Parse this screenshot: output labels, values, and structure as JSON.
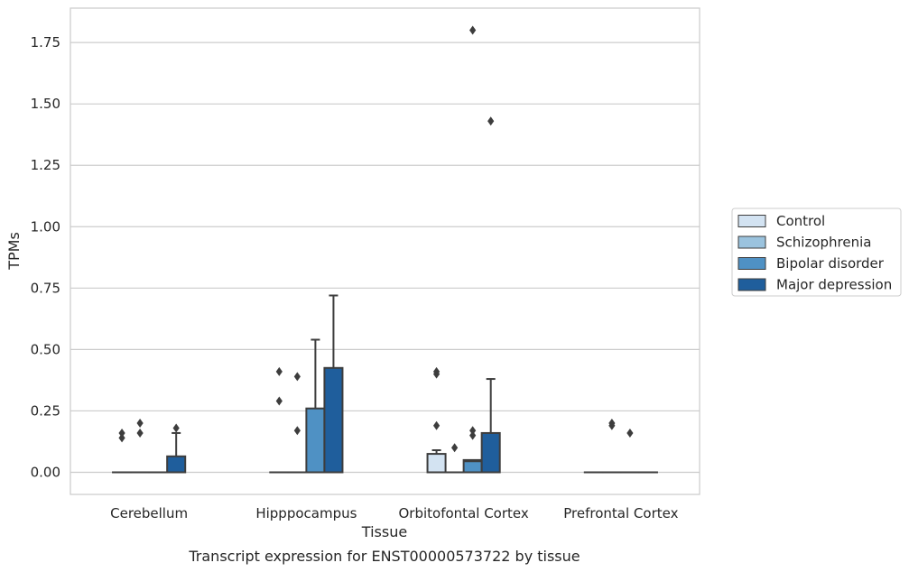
{
  "chart_data": {
    "type": "box",
    "title": "Transcript expression for ENST00000573722 by tissue",
    "xlabel": "Tissue",
    "ylabel": "TPMs",
    "ylim": [
      -0.09,
      1.89
    ],
    "yticks": [
      "0.00",
      "0.25",
      "0.50",
      "0.75",
      "1.00",
      "1.25",
      "1.50",
      "1.75"
    ],
    "ytick_values": [
      0,
      0.25,
      0.5,
      0.75,
      1.0,
      1.25,
      1.5,
      1.75
    ],
    "categories": [
      "Cerebellum",
      "Hipppocampus",
      "Orbitofontal Cortex",
      "Prefrontal Cortex"
    ],
    "grid": "horizontal",
    "legend_position": "right",
    "series": [
      {
        "name": "Control",
        "color": "#d3e3f2",
        "boxes": [
          {
            "q1": 0,
            "median": 0,
            "q3": 0,
            "whisker_low": 0,
            "whisker_high": 0,
            "outliers": [
              0.14,
              0.16
            ]
          },
          {
            "q1": 0,
            "median": 0,
            "q3": 0,
            "whisker_low": 0,
            "whisker_high": 0,
            "outliers": [
              0.29,
              0.41
            ]
          },
          {
            "q1": 0,
            "median": 0,
            "q3": 0.075,
            "whisker_low": 0,
            "whisker_high": 0.09,
            "outliers": [
              0.19,
              0.4,
              0.41
            ]
          },
          {
            "q1": 0,
            "median": 0,
            "q3": 0,
            "whisker_low": 0,
            "whisker_high": 0,
            "outliers": []
          }
        ]
      },
      {
        "name": "Schizophrenia",
        "color": "#9bc3de",
        "boxes": [
          {
            "q1": 0,
            "median": 0,
            "q3": 0,
            "whisker_low": 0,
            "whisker_high": 0,
            "outliers": [
              0.16,
              0.2
            ]
          },
          {
            "q1": 0,
            "median": 0,
            "q3": 0,
            "whisker_low": 0,
            "whisker_high": 0,
            "outliers": [
              0.17,
              0.39
            ]
          },
          {
            "q1": 0,
            "median": 0,
            "q3": 0,
            "whisker_low": 0,
            "whisker_high": 0,
            "outliers": [
              0.1
            ]
          },
          {
            "q1": 0,
            "median": 0,
            "q3": 0,
            "whisker_low": 0,
            "whisker_high": 0,
            "outliers": [
              0.19,
              0.2
            ]
          }
        ]
      },
      {
        "name": "Bipolar disorder",
        "color": "#4f91c4",
        "boxes": [
          {
            "q1": 0,
            "median": 0,
            "q3": 0,
            "whisker_low": 0,
            "whisker_high": 0,
            "outliers": []
          },
          {
            "q1": 0,
            "median": 0,
            "q3": 0.26,
            "whisker_low": 0,
            "whisker_high": 0.54,
            "outliers": []
          },
          {
            "q1": 0,
            "median": 0.045,
            "q3": 0.05,
            "whisker_low": 0,
            "whisker_high": 0.05,
            "outliers": [
              0.15,
              0.17,
              1.8
            ]
          },
          {
            "q1": 0,
            "median": 0,
            "q3": 0,
            "whisker_low": 0,
            "whisker_high": 0,
            "outliers": [
              0.16
            ]
          }
        ]
      },
      {
        "name": "Major depression",
        "color": "#1f5e9c",
        "boxes": [
          {
            "q1": 0,
            "median": 0,
            "q3": 0.065,
            "whisker_low": 0,
            "whisker_high": 0.16,
            "outliers": [
              0.18
            ]
          },
          {
            "q1": 0,
            "median": 0,
            "q3": 0.425,
            "whisker_low": 0,
            "whisker_high": 0.72,
            "outliers": []
          },
          {
            "q1": 0,
            "median": 0,
            "q3": 0.16,
            "whisker_low": 0,
            "whisker_high": 0.38,
            "outliers": [
              1.43
            ]
          },
          {
            "q1": 0,
            "median": 0,
            "q3": 0,
            "whisker_low": 0,
            "whisker_high": 0,
            "outliers": []
          }
        ]
      }
    ]
  }
}
